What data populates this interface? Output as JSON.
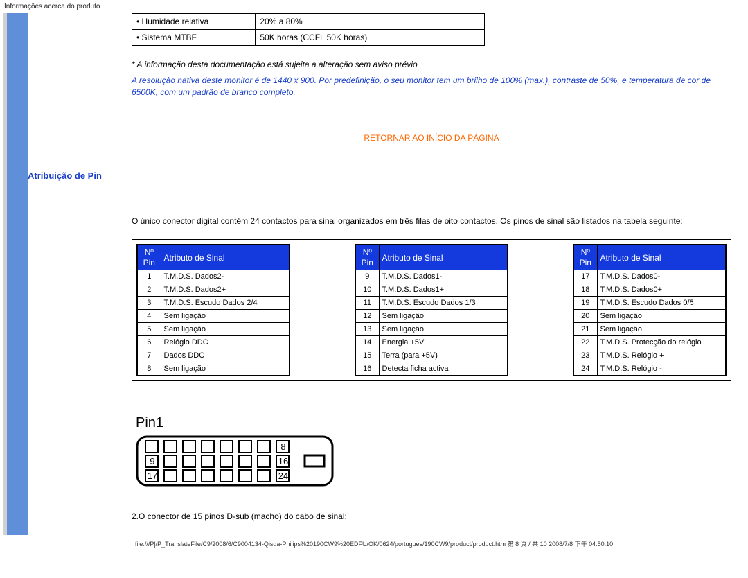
{
  "top_header": "Informações acerca do produto",
  "spec_rows": [
    {
      "label": "• Humidade relativa",
      "value": "20% a 80%"
    },
    {
      "label": "• Sistema MTBF",
      "value": "50K horas (CCFL 50K horas)"
    }
  ],
  "note1": "* A informação desta documentação está sujeita a alteração sem aviso prévio",
  "note2": "A resolução nativa deste monitor é de 1440 x 900. Por predefinição, o seu monitor tem um brilho de 100% (max.), contraste de 50%, e temperatura de cor de 6500K, com um padrão de branco completo.",
  "return_link": "RETORNAR AO INÍCIO DA PÁGINA",
  "section_title": "Atribuição de Pin",
  "intro_text": "O único conector digital contém 24 contactos para sinal organizados em três filas de oito contactos. Os pinos de sinal são listados na tabela seguinte:",
  "pin_header_num": "Nº Pin",
  "pin_header_attr": "Atributo de Sinal",
  "pins": [
    [
      {
        "n": "1",
        "s": "T.M.D.S. Dados2-"
      },
      {
        "n": "2",
        "s": "T.M.D.S. Dados2+"
      },
      {
        "n": "3",
        "s": "T.M.D.S. Escudo Dados 2/4"
      },
      {
        "n": "4",
        "s": "Sem ligação"
      },
      {
        "n": "5",
        "s": "Sem ligação"
      },
      {
        "n": "6",
        "s": "Relógio DDC"
      },
      {
        "n": "7",
        "s": "Dados DDC"
      },
      {
        "n": "8",
        "s": "Sem ligação"
      }
    ],
    [
      {
        "n": "9",
        "s": "T.M.D.S. Dados1-"
      },
      {
        "n": "10",
        "s": "T.M.D.S. Dados1+"
      },
      {
        "n": "11",
        "s": "T.M.D.S. Escudo Dados 1/3"
      },
      {
        "n": "12",
        "s": "Sem ligação"
      },
      {
        "n": "13",
        "s": "Sem ligação"
      },
      {
        "n": "14",
        "s": "Energia +5V"
      },
      {
        "n": "15",
        "s": "Terra (para +5V)"
      },
      {
        "n": "16",
        "s": "Detecta ficha activa"
      }
    ],
    [
      {
        "n": "17",
        "s": "T.M.D.S. Dados0-"
      },
      {
        "n": "18",
        "s": "T.M.D.S. Dados0+"
      },
      {
        "n": "19",
        "s": "T.M.D.S. Escudo Dados 0/5"
      },
      {
        "n": "20",
        "s": "Sem ligação"
      },
      {
        "n": "21",
        "s": "Sem ligação"
      },
      {
        "n": "22",
        "s": "T.M.D.S. Protecção do relógio"
      },
      {
        "n": "23",
        "s": "T.M.D.S. Relógio +"
      },
      {
        "n": "24",
        "s": "T.M.D.S. Relógio -"
      }
    ]
  ],
  "connector_label": "Pin1",
  "connector_nums": {
    "a": "8",
    "b": "16",
    "c": "9",
    "d": "17",
    "e": "24"
  },
  "text_after_connector": "2.O conector de 15 pinos D-sub (macho) do cabo de sinal:",
  "footer": "file:///P|/P_TranslateFile/C9/2008/6/C9004134-Qisda-Philips%20190CW9%20EDFU/OK/0624/portugues/190CW9/product/product.htm 第 8 頁 / 共 10 2008/7/8 下午 04:50:10",
  "colors": {
    "blue_band": "#5e8fd8",
    "table_header_bg": "#1439dd",
    "note_blue": "#1a3fc8",
    "link_orange": "#ff6600"
  }
}
